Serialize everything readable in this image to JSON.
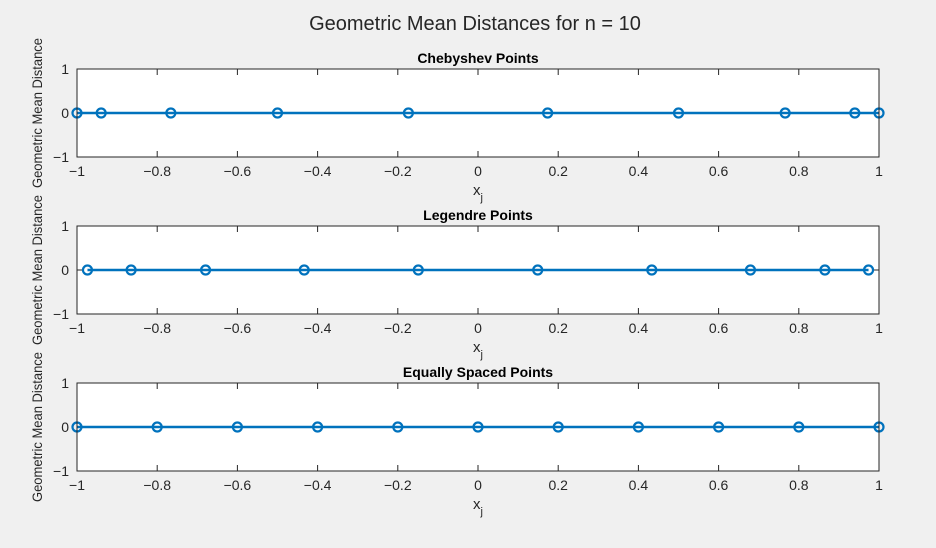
{
  "figure": {
    "title": "Geometric Mean Distances for n = 10",
    "background": "#f0f0f0",
    "series_color": "#0072bd"
  },
  "chart_data": [
    {
      "type": "line",
      "title": "Chebyshev Points",
      "xlabel": "x",
      "xlabel_sub": "j",
      "ylabel": "Geometric Mean Distance",
      "xlim": [
        -1,
        1
      ],
      "ylim": [
        -1,
        1
      ],
      "xticks": [
        -1,
        -0.8,
        -0.6,
        -0.4,
        -0.2,
        0,
        0.2,
        0.4,
        0.6,
        0.8,
        1
      ],
      "xtick_labels": [
        "−1",
        "−0.8",
        "−0.6",
        "−0.4",
        "−0.2",
        "0",
        "0.2",
        "0.4",
        "0.6",
        "0.8",
        "1"
      ],
      "yticks": [
        -1,
        0,
        1
      ],
      "ytick_labels": [
        "−1",
        "0",
        "1"
      ],
      "marker": "circle",
      "x": [
        -1,
        -0.9397,
        -0.766,
        -0.5,
        -0.1736,
        0.1736,
        0.5,
        0.766,
        0.9397,
        1
      ],
      "y": [
        0,
        0,
        0,
        0,
        0,
        0,
        0,
        0,
        0,
        0
      ]
    },
    {
      "type": "line",
      "title": "Legendre Points",
      "xlabel": "x",
      "xlabel_sub": "j",
      "ylabel": "Geometric Mean Distance",
      "xlim": [
        -1,
        1
      ],
      "ylim": [
        -1,
        1
      ],
      "xticks": [
        -1,
        -0.8,
        -0.6,
        -0.4,
        -0.2,
        0,
        0.2,
        0.4,
        0.6,
        0.8,
        1
      ],
      "xtick_labels": [
        "−1",
        "−0.8",
        "−0.6",
        "−0.4",
        "−0.2",
        "0",
        "0.2",
        "0.4",
        "0.6",
        "0.8",
        "1"
      ],
      "yticks": [
        -1,
        0,
        1
      ],
      "ytick_labels": [
        "−1",
        "0",
        "1"
      ],
      "marker": "circle",
      "x": [
        -0.9739,
        -0.8651,
        -0.6794,
        -0.4334,
        -0.1489,
        0.1489,
        0.4334,
        0.6794,
        0.8651,
        0.9739
      ],
      "y": [
        0,
        0,
        0,
        0,
        0,
        0,
        0,
        0,
        0,
        0
      ]
    },
    {
      "type": "line",
      "title": "Equally Spaced Points",
      "xlabel": "x",
      "xlabel_sub": "j",
      "ylabel": "Geometric Mean Distance",
      "xlim": [
        -1,
        1
      ],
      "ylim": [
        -1,
        1
      ],
      "xticks": [
        -1,
        -0.8,
        -0.6,
        -0.4,
        -0.2,
        0,
        0.2,
        0.4,
        0.6,
        0.8,
        1
      ],
      "xtick_labels": [
        "−1",
        "−0.8",
        "−0.6",
        "−0.4",
        "−0.2",
        "0",
        "0.2",
        "0.4",
        "0.6",
        "0.8",
        "1"
      ],
      "yticks": [
        -1,
        0,
        1
      ],
      "ytick_labels": [
        "−1",
        "0",
        "1"
      ],
      "marker": "circle",
      "x": [
        -1,
        -0.8,
        -0.6,
        -0.4,
        -0.2,
        0,
        0.2,
        0.4,
        0.6,
        0.8,
        1
      ],
      "y": [
        0,
        0,
        0,
        0,
        0,
        0,
        0,
        0,
        0,
        0,
        0
      ]
    }
  ]
}
